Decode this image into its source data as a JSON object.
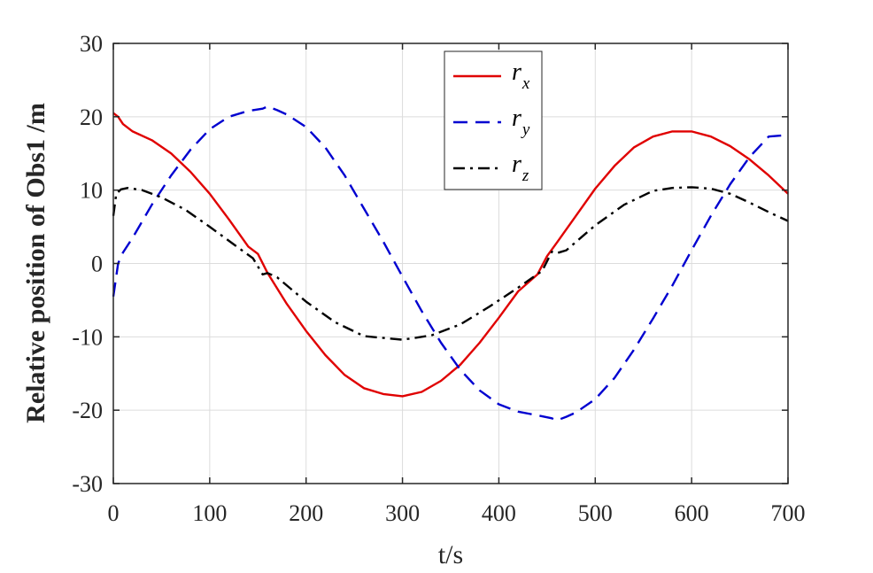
{
  "chart_data": {
    "type": "line",
    "title": "",
    "xlabel": "t/s",
    "ylabel": "Relative position of Obs1 /m",
    "xlim": [
      0,
      700
    ],
    "ylim": [
      -30,
      30
    ],
    "x_ticks": [
      0,
      100,
      200,
      300,
      400,
      500,
      600,
      700
    ],
    "y_ticks": [
      -30,
      -20,
      -10,
      0,
      10,
      20,
      30
    ],
    "x_tick_labels": [
      "0",
      "100",
      "200",
      "300",
      "400",
      "500",
      "600",
      "700"
    ],
    "y_tick_labels": [
      "-30",
      "-20",
      "-10",
      "0",
      "10",
      "20",
      "30"
    ],
    "grid": true,
    "legend_position": "top-center",
    "series": [
      {
        "name": "r_x",
        "label_main": "r",
        "label_sub": "x",
        "color": "#e00000",
        "style": "solid",
        "x": [
          0,
          5,
          10,
          20,
          40,
          60,
          80,
          100,
          120,
          140,
          150,
          160,
          180,
          200,
          220,
          240,
          260,
          280,
          300,
          320,
          340,
          360,
          380,
          400,
          420,
          440,
          450,
          460,
          480,
          500,
          520,
          540,
          560,
          580,
          600,
          620,
          640,
          660,
          680,
          700
        ],
        "y": [
          20.5,
          20,
          19,
          18,
          16.8,
          15,
          12.5,
          9.5,
          6,
          2.3,
          1.3,
          -1.3,
          -5.5,
          -9.2,
          -12.5,
          -15.2,
          -17,
          -17.8,
          -18.1,
          -17.5,
          -16,
          -13.8,
          -10.8,
          -7.4,
          -3.8,
          -1.5,
          1,
          2.8,
          6.5,
          10.2,
          13.3,
          15.8,
          17.3,
          18,
          18,
          17.3,
          16,
          14.2,
          12,
          9.5
        ]
      },
      {
        "name": "r_y",
        "label_main": "r",
        "label_sub": "y",
        "color": "#0000d0",
        "style": "dashed",
        "x": [
          0,
          5,
          10,
          20,
          40,
          60,
          80,
          100,
          120,
          140,
          155,
          160,
          170,
          180,
          200,
          220,
          240,
          260,
          280,
          300,
          320,
          340,
          360,
          380,
          400,
          420,
          440,
          455,
          460,
          470,
          480,
          500,
          520,
          540,
          560,
          580,
          600,
          620,
          640,
          660,
          680,
          700
        ],
        "y": [
          -4.5,
          0,
          1.5,
          3.5,
          8,
          12,
          15.5,
          18.3,
          20,
          20.8,
          21.1,
          21.4,
          20.9,
          20.3,
          18.6,
          15.8,
          12,
          7.5,
          3,
          -1.8,
          -6.5,
          -10.8,
          -14.5,
          -17.3,
          -19.2,
          -20.2,
          -20.7,
          -21.1,
          -21.4,
          -20.9,
          -20.3,
          -18.5,
          -15.6,
          -11.8,
          -7.5,
          -3,
          1.8,
          6.5,
          10.8,
          14.5,
          17.3,
          17.5
        ]
      },
      {
        "name": "r_z",
        "label_main": "r",
        "label_sub": "z",
        "color": "#000000",
        "style": "dashdot",
        "x": [
          0,
          3,
          8,
          15,
          30,
          50,
          75,
          100,
          125,
          145,
          155,
          160,
          170,
          200,
          230,
          260,
          300,
          330,
          360,
          390,
          420,
          445,
          455,
          460,
          470,
          500,
          530,
          560,
          580,
          600,
          620,
          640,
          660,
          680,
          700
        ],
        "y": [
          6.5,
          9.5,
          10.1,
          10.3,
          10,
          9,
          7.3,
          5,
          2.6,
          0.7,
          -1.5,
          -1.3,
          -1.9,
          -5.2,
          -8.0,
          -9.9,
          -10.4,
          -9.8,
          -8.3,
          -5.9,
          -3.3,
          -1.0,
          1.6,
          1.4,
          1.8,
          5.2,
          8.0,
          9.9,
          10.3,
          10.4,
          10.2,
          9.5,
          8.3,
          7.0,
          5.8
        ]
      }
    ]
  }
}
